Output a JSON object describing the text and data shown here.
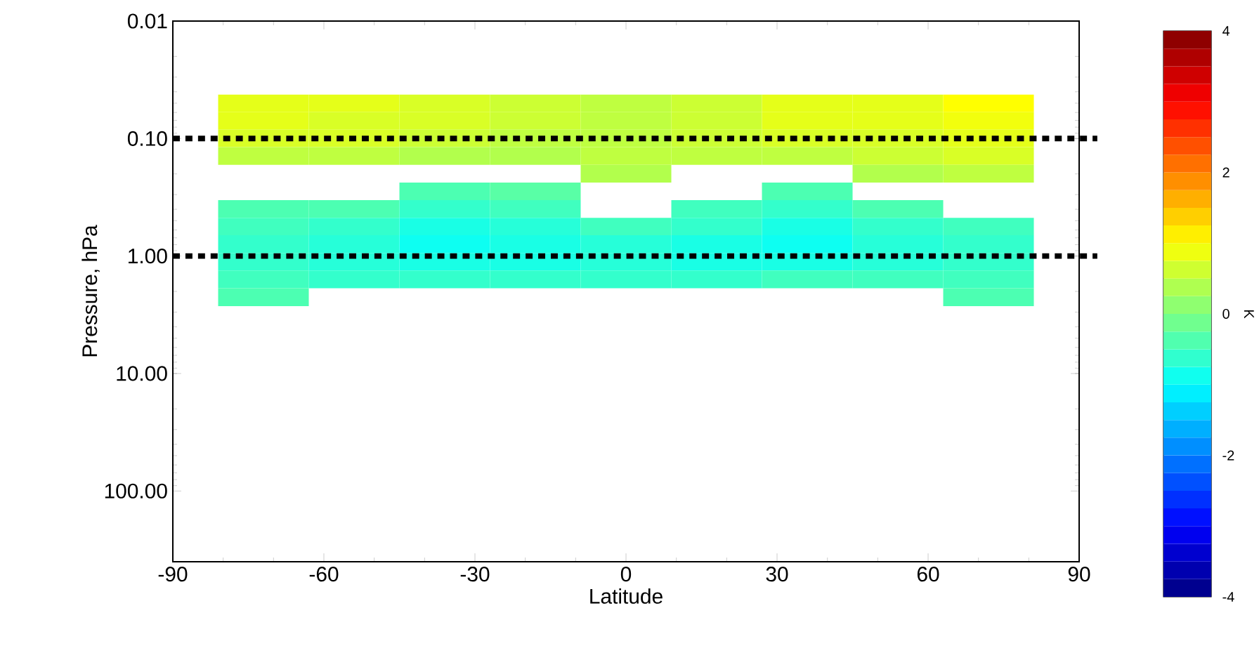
{
  "chart_data": {
    "type": "heatmap",
    "xlabel": "Latitude",
    "ylabel": "Pressure, hPa",
    "clabel": "K",
    "x": [
      -72,
      -54,
      -36,
      -18,
      0,
      18,
      36,
      54,
      72
    ],
    "y": [
      0.05,
      0.07,
      0.1,
      0.14,
      0.2,
      0.28,
      0.4,
      0.56,
      0.79,
      1.12,
      1.58,
      2.24
    ],
    "cells": [
      [
        0.8,
        0.8,
        0.7,
        0.6,
        0.5,
        0.6,
        0.8,
        0.8,
        1.0
      ],
      [
        0.8,
        0.7,
        0.7,
        0.6,
        0.5,
        0.6,
        0.8,
        0.8,
        0.9
      ],
      [
        0.7,
        0.7,
        0.6,
        0.5,
        0.5,
        0.6,
        0.7,
        0.7,
        0.8
      ],
      [
        0.5,
        0.5,
        0.4,
        0.4,
        0.5,
        0.5,
        0.5,
        0.6,
        0.7
      ],
      [
        null,
        null,
        null,
        null,
        0.4,
        null,
        null,
        0.4,
        0.5
      ],
      [
        null,
        null,
        -0.4,
        -0.3,
        null,
        null,
        -0.4,
        null,
        null
      ],
      [
        -0.4,
        -0.4,
        -0.6,
        -0.5,
        null,
        -0.5,
        -0.6,
        -0.4,
        null
      ],
      [
        -0.5,
        -0.6,
        -0.8,
        -0.7,
        -0.5,
        -0.6,
        -0.8,
        -0.6,
        -0.5
      ],
      [
        -0.6,
        -0.7,
        -0.9,
        -0.8,
        -0.7,
        -0.8,
        -0.9,
        -0.7,
        -0.6
      ],
      [
        -0.6,
        -0.7,
        -0.8,
        -0.8,
        -0.7,
        -0.8,
        -0.8,
        -0.7,
        -0.6
      ],
      [
        -0.5,
        -0.6,
        -0.6,
        -0.6,
        -0.6,
        -0.6,
        -0.5,
        -0.5,
        -0.5
      ],
      [
        -0.4,
        null,
        null,
        null,
        null,
        null,
        null,
        null,
        -0.4
      ]
    ],
    "xlim": [
      -90,
      90
    ],
    "xticks": [
      -90,
      -60,
      -30,
      0,
      30,
      60,
      90
    ],
    "ylim": [
      400,
      0.01
    ],
    "log": "y",
    "yticks": [
      0.01,
      {
        "value": 0.1,
        "label": "0.10"
      },
      {
        "value": 1,
        "label": "1.00"
      },
      {
        "value": 10,
        "label": "10.00"
      },
      {
        "value": 100,
        "label": "100.00"
      }
    ],
    "clim": [
      -4,
      4
    ],
    "cticks": [
      -4,
      -2,
      0,
      2,
      4
    ],
    "ref_lines": [
      {
        "axis": "y",
        "value": 0.1,
        "color": "#000000",
        "line_style": "dotted"
      },
      {
        "axis": "y",
        "value": 1,
        "color": "#000000",
        "line_style": "dotted"
      }
    ],
    "grid": false
  }
}
